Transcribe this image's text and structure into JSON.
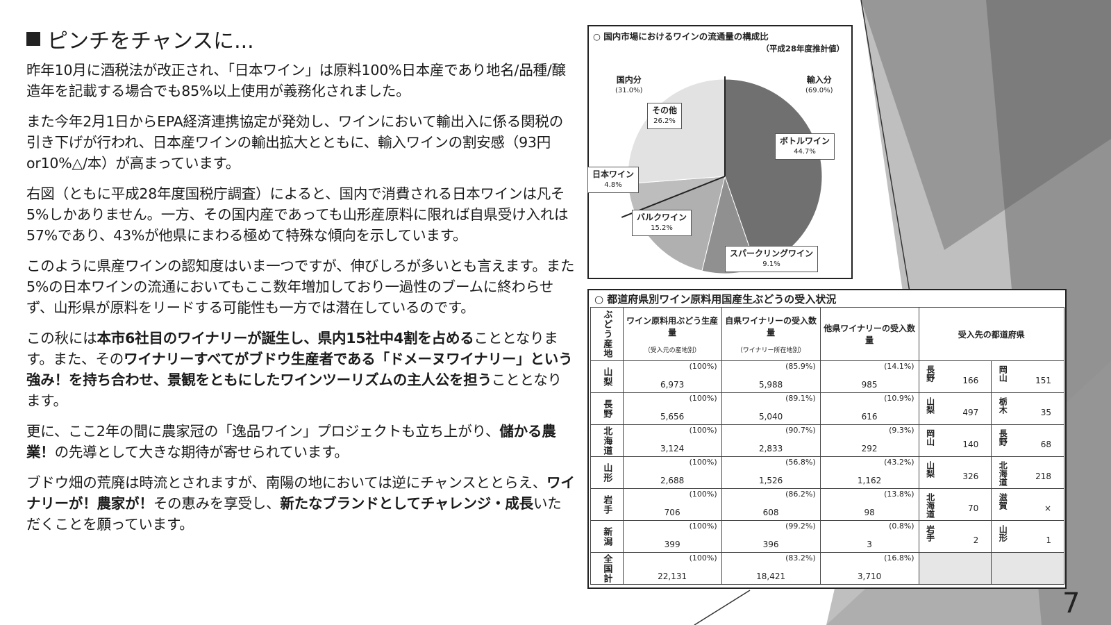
{
  "heading": {
    "text": "ピンチをチャンスに..."
  },
  "paragraphs": {
    "p1": "昨年10月に酒税法が改正され、「日本ワイン」は原料100%日本産であり地名/品種/醸造年を記載する場合でも85%以上使用が義務化されました。",
    "p2": "また今年2月1日からEPA経済連携協定が発効し、ワインにおいて輸出入に係る関税の引き下げが行われ、日本産ワインの輸出拡大とともに、輸入ワインの割安感（93円or10%△/本）が高まっています。",
    "p3": "右図（ともに平成28年度国税庁調査）によると、国内で消費される日本ワインは凡そ5%しかありません。一方、その国内産であっても山形産原料に限れば自県受け入れは57%であり、43%が他県にまわる極めて特殊な傾向を示しています。",
    "p4": "このように県産ワインの認知度はいま一つですが、伸びしろが多いとも言えます。また5%の日本ワインの流通においてもここ数年増加しており一過性のブームに終わらせず、山形県が原料をリードする可能性も一方では潜在しているのです。",
    "p5_a": "この秋には",
    "p5_b": "本市6社目のワイナリーが誕生し、県内15社中4割を占める",
    "p5_c": "こととなります。また、その",
    "p5_d": "ワイナリーすべてがブドウ生産者である「ドメーヌワイナリー」という強み！を持ち合わせ、景観をともにしたワインツーリズムの主人公を担う",
    "p5_e": "こととなります。",
    "p6_a": "更に、ここ2年の間に農家冠の「逸品ワイン」プロジェクトも立ち上がり、",
    "p6_b": "儲かる農業！",
    "p6_c": "の先導として大きな期待が寄せられています。",
    "p7_a": "ブドウ畑の荒廃は時流とされますが、南陽の地においては逆にチャンスととらえ、",
    "p7_b": "ワイナリーが！農家が！",
    "p7_c": "その恵みを享受し、",
    "p7_d": "新たなブランドとしてチャレンジ・成長",
    "p7_e": "いただくことを願っています。"
  },
  "pie_chart": {
    "title": "○ 国内市場におけるワインの流通量の構成比",
    "subtitle": "（平成28年度推計値）",
    "domestic_label": "国内分",
    "domestic_pct": "(31.0%)",
    "import_label": "輸入分",
    "import_pct": "(69.0%)",
    "other_label": "その他",
    "other_pct": "26.2%",
    "bottle_label": "ボトルワイン",
    "bottle_pct": "44.7%",
    "japan_label": "日本ワイン",
    "japan_pct": "4.8%",
    "bulk_label": "バルクワイン",
    "bulk_pct": "15.2%",
    "sparkling_label": "スパークリングワイン",
    "sparkling_pct": "9.1%",
    "colors": {
      "bottle": "#707070",
      "sparkling": "#909090",
      "bulk": "#b0b0b0",
      "japan": "#bdbdbd",
      "other": "#e2e2e2"
    }
  },
  "chart_data": {
    "type": "pie",
    "title": "○ 国内市場におけるワインの流通量の構成比",
    "subtitle": "（平成28年度推計値）",
    "slices": [
      {
        "label": "ボトルワイン",
        "value": 44.7
      },
      {
        "label": "スパークリングワイン",
        "value": 9.1
      },
      {
        "label": "バルクワイン",
        "value": 15.2
      },
      {
        "label": "日本ワイン",
        "value": 4.8
      },
      {
        "label": "その他",
        "value": 26.2
      }
    ],
    "groups": [
      {
        "label": "国内分",
        "value": 31.0
      },
      {
        "label": "輸入分",
        "value": 69.0
      }
    ]
  },
  "table": {
    "title": "○ 都道府県別ワイン原料用国産生ぶどうの受入状況",
    "headers": {
      "origin": "ぶどう産地",
      "production": "ワイン原料用ぶどう生産量",
      "production_sub": "（受入元の産地別）",
      "own": "自県ワイナリーの受入数量",
      "own_sub": "（ワイナリー所在地別）",
      "other": "他県ワイナリーの受入数量",
      "dest": "受入先の都道府県"
    },
    "rows": [
      {
        "pref": "山梨",
        "prod_pct": "(100%)",
        "prod": "6,973",
        "own_pct": "(85.9%)",
        "own": "5,988",
        "oth_pct": "(14.1%)",
        "oth": "985",
        "d1": "長野",
        "d1v": "166",
        "d2": "岡山",
        "d2v": "151"
      },
      {
        "pref": "長野",
        "prod_pct": "(100%)",
        "prod": "5,656",
        "own_pct": "(89.1%)",
        "own": "5,040",
        "oth_pct": "(10.9%)",
        "oth": "616",
        "d1": "山梨",
        "d1v": "497",
        "d2": "栃木",
        "d2v": "35"
      },
      {
        "pref": "北海道",
        "prod_pct": "(100%)",
        "prod": "3,124",
        "own_pct": "(90.7%)",
        "own": "2,833",
        "oth_pct": "(9.3%)",
        "oth": "292",
        "d1": "岡山",
        "d1v": "140",
        "d2": "長野",
        "d2v": "68"
      },
      {
        "pref": "山形",
        "prod_pct": "(100%)",
        "prod": "2,688",
        "own_pct": "(56.8%)",
        "own": "1,526",
        "oth_pct": "(43.2%)",
        "oth": "1,162",
        "d1": "山梨",
        "d1v": "326",
        "d2": "北海道",
        "d2v": "218"
      },
      {
        "pref": "岩手",
        "prod_pct": "(100%)",
        "prod": "706",
        "own_pct": "(86.2%)",
        "own": "608",
        "oth_pct": "(13.8%)",
        "oth": "98",
        "d1": "北海道",
        "d1v": "70",
        "d2": "滋賀",
        "d2v": "×"
      },
      {
        "pref": "新潟",
        "prod_pct": "(100%)",
        "prod": "399",
        "own_pct": "(99.2%)",
        "own": "396",
        "oth_pct": "(0.8%)",
        "oth": "3",
        "d1": "岩手",
        "d1v": "2",
        "d2": "山形",
        "d2v": "1"
      },
      {
        "pref": "全国計",
        "prod_pct": "(100%)",
        "prod": "22,131",
        "own_pct": "(83.2%)",
        "own": "18,421",
        "oth_pct": "(16.8%)",
        "oth": "3,710",
        "d1": "",
        "d1v": "",
        "d2": "",
        "d2v": ""
      }
    ]
  },
  "page_number": "7"
}
